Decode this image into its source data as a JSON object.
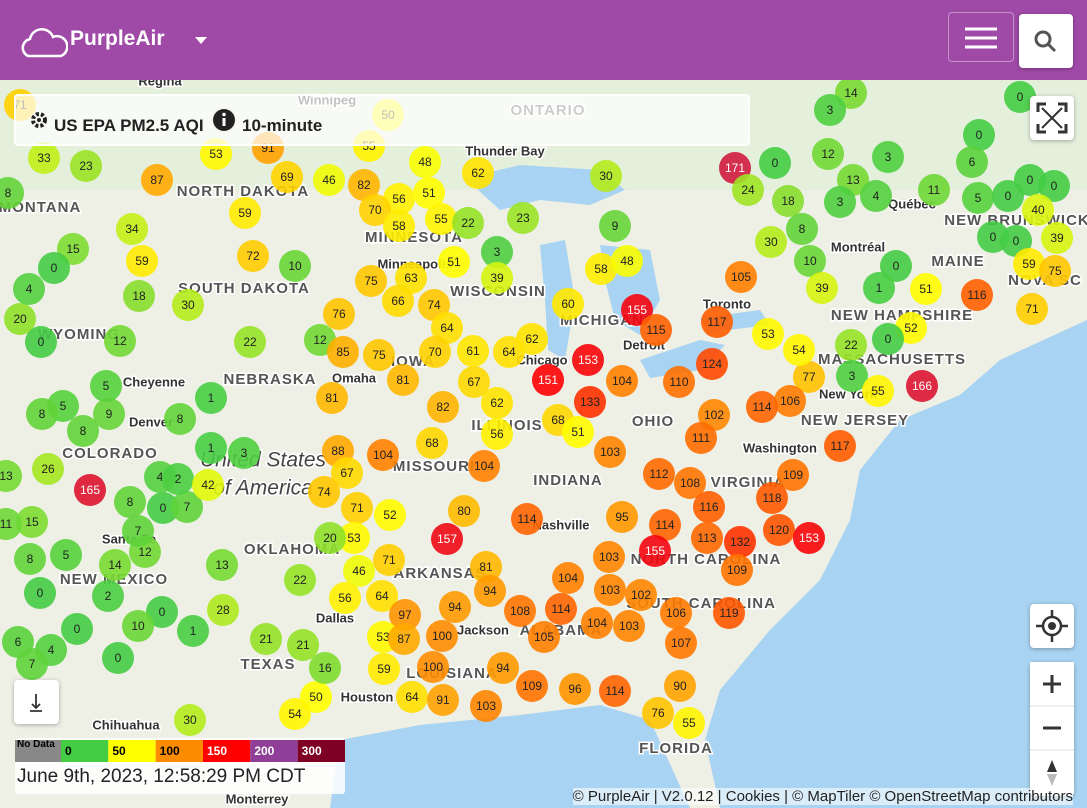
{
  "header": {
    "brand": "PurpleAir"
  },
  "layer": {
    "name": "US EPA PM2.5 AQI",
    "interval": "10-minute"
  },
  "legend": {
    "no_data": "No Data",
    "ticks": [
      0,
      50,
      100,
      150,
      200,
      300
    ]
  },
  "timestamp": "June 9th, 2023, 12:58:29 PM CDT",
  "attribution": "© PurpleAir | V2.0.12 | Cookies | © MapTiler © OpenStreetMap contributors",
  "places": [
    "Regina",
    "Winnipeg",
    "ONTARIO",
    "Thunder Bay",
    "NORTH DAKOTA",
    "MONTANA",
    "MINNESOTA",
    "Minneapolis",
    "SOUTH DAKOTA",
    "WISCONSIN",
    "MICHIGAN",
    "WYOMING",
    "Toronto",
    "Québec",
    "NEW BRUNSWICK",
    "Montréal",
    "MAINE",
    "NOVA SC",
    "NEW HAMPSHIRE",
    "MASSACHUSETTS",
    "NEBRASKA",
    "IOWA",
    "Omaha",
    "Chicago",
    "Detroit",
    "Cheyenne",
    "New York",
    "NEW JERSEY",
    "Denver",
    "ILLINOIS",
    "OHIO",
    "COLORADO",
    "Washington",
    "United States",
    "of America",
    "MISSOURI",
    "INDIANA",
    "VIRGINIA",
    "Nashville",
    "Santa Fe",
    "OKLAHOMA",
    "NORTH CAROLINA",
    "ARKANSAS",
    "NEW MEXICO",
    "SOUTH CAROLINA",
    "Dallas",
    "Jackson",
    "ALABAMA",
    "TEXAS",
    "LOUISIANA",
    "Houston",
    "Chihuahua",
    "FLORIDA",
    "Monterrey"
  ],
  "sensors": [
    71,
    50,
    33,
    23,
    53,
    91,
    55,
    87,
    48,
    62,
    30,
    171,
    24,
    0,
    18,
    12,
    3,
    13,
    4,
    3,
    11,
    14,
    3,
    0,
    0,
    6,
    0,
    0,
    5,
    0,
    40,
    0,
    0,
    39,
    8,
    30,
    10,
    0,
    39,
    1,
    51,
    116,
    59,
    75,
    71,
    52,
    0,
    22,
    166,
    3,
    55,
    77,
    106,
    54,
    53,
    114,
    117,
    109,
    118,
    120,
    153,
    132,
    109,
    119,
    8,
    82,
    56,
    51,
    70,
    58,
    55,
    22,
    59,
    69,
    46,
    34,
    23,
    9,
    3,
    51,
    39,
    58,
    48,
    105,
    75,
    63,
    66,
    74,
    60,
    155,
    115,
    117,
    72,
    10,
    59,
    18,
    30,
    76,
    64,
    12,
    85,
    75,
    70,
    61,
    64,
    62,
    153,
    104,
    110,
    124,
    151,
    133,
    81,
    67,
    81,
    82,
    62,
    68,
    102,
    111,
    56,
    51,
    103,
    112,
    108,
    116,
    114,
    113,
    155,
    103,
    104,
    103,
    102,
    106,
    103,
    104,
    114,
    108,
    105,
    107,
    88,
    104,
    67,
    104,
    68,
    74,
    71,
    52,
    80,
    114,
    95,
    157,
    53,
    71,
    20,
    46,
    81,
    94,
    56,
    64,
    97,
    94,
    100,
    53,
    87,
    59,
    100,
    94,
    64,
    91,
    103,
    109,
    96,
    114,
    90,
    76,
    55,
    50,
    54,
    16,
    21,
    21,
    22,
    30,
    13,
    28,
    1,
    0,
    10,
    0,
    0,
    2,
    4,
    6,
    7,
    0,
    8,
    5,
    14,
    12,
    7,
    165,
    8,
    0,
    7,
    4,
    2,
    42,
    26,
    13,
    1,
    1,
    3,
    22,
    9,
    5,
    12,
    8,
    8,
    5,
    8,
    20,
    0,
    4,
    15,
    0,
    15,
    11
  ]
}
